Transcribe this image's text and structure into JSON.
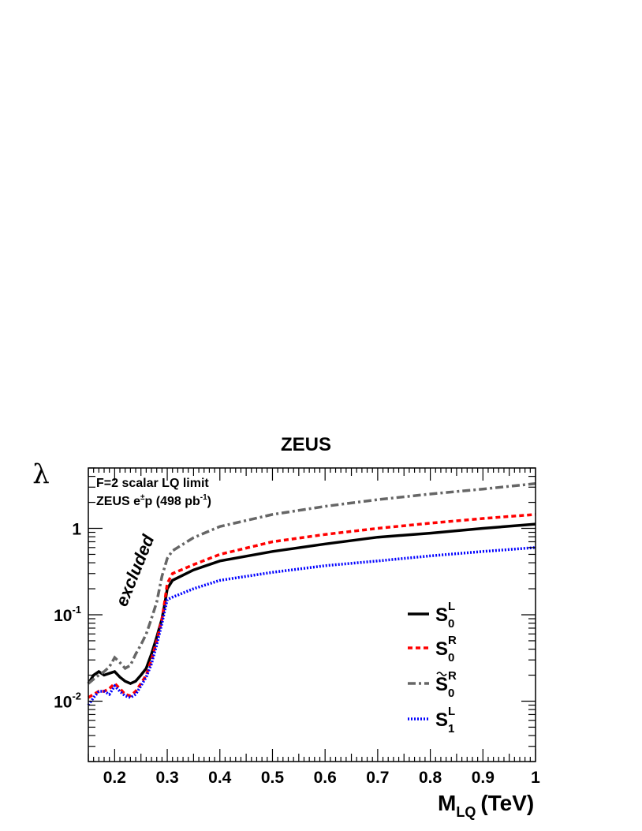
{
  "chart_data": {
    "type": "line",
    "title": "ZEUS",
    "xlabel_main": "M",
    "xlabel_sub": "LQ",
    "xlabel_unit": "(TeV)",
    "ylabel": "λ",
    "xlim": [
      0.15,
      1.0
    ],
    "ylim": [
      0.002,
      5
    ],
    "y_scale": "log",
    "grid": false,
    "x_ticks": [
      0.2,
      0.3,
      0.4,
      0.5,
      0.6,
      0.7,
      0.8,
      0.9,
      1
    ],
    "x_tick_labels": [
      "0.2",
      "0.3",
      "0.4",
      "0.5",
      "0.6",
      "0.7",
      "0.8",
      "0.9",
      "1"
    ],
    "y_ticks": [
      0.01,
      0.1,
      1
    ],
    "y_tick_labels": [
      {
        "base": "10",
        "exp": "-2"
      },
      {
        "base": "10",
        "exp": "-1"
      },
      {
        "base": "1",
        "exp": ""
      }
    ],
    "annotations": {
      "line1": "F=2 scalar LQ limit",
      "line2_prefix": "ZEUS e",
      "line2_sup": "±",
      "line2_mid": "p (498 pb",
      "line2_sup2": "-1",
      "line2_end": ")",
      "region": "excluded"
    },
    "legend_position": "bottom-right",
    "legend": [
      {
        "base": "S",
        "sub": "0",
        "sup": "L",
        "tilde": false
      },
      {
        "base": "S",
        "sub": "0",
        "sup": "R",
        "tilde": false
      },
      {
        "base": "S",
        "sub": "0",
        "sup": "R",
        "tilde": true
      },
      {
        "base": "S",
        "sub": "1",
        "sup": "L",
        "tilde": false
      }
    ],
    "series": [
      {
        "color": "#000000",
        "dash": "solid",
        "x": [
          0.15,
          0.16,
          0.17,
          0.18,
          0.19,
          0.2,
          0.21,
          0.22,
          0.23,
          0.24,
          0.25,
          0.26,
          0.27,
          0.28,
          0.29,
          0.295,
          0.3,
          0.31,
          0.35,
          0.4,
          0.5,
          0.6,
          0.7,
          0.8,
          0.9,
          1.0
        ],
        "y": [
          0.016,
          0.02,
          0.022,
          0.02,
          0.021,
          0.022,
          0.019,
          0.017,
          0.016,
          0.017,
          0.02,
          0.024,
          0.035,
          0.055,
          0.09,
          0.13,
          0.2,
          0.25,
          0.33,
          0.42,
          0.54,
          0.66,
          0.79,
          0.88,
          1.0,
          1.12
        ]
      },
      {
        "color": "#ff0000",
        "dash": "dashed",
        "x": [
          0.15,
          0.16,
          0.17,
          0.18,
          0.19,
          0.2,
          0.21,
          0.22,
          0.23,
          0.24,
          0.25,
          0.26,
          0.27,
          0.28,
          0.29,
          0.295,
          0.3,
          0.31,
          0.35,
          0.4,
          0.5,
          0.6,
          0.7,
          0.8,
          0.9,
          1.0
        ],
        "y": [
          0.011,
          0.012,
          0.013,
          0.013,
          0.014,
          0.016,
          0.014,
          0.012,
          0.0115,
          0.013,
          0.016,
          0.02,
          0.03,
          0.05,
          0.09,
          0.14,
          0.23,
          0.3,
          0.38,
          0.5,
          0.7,
          0.85,
          1.0,
          1.15,
          1.3,
          1.45
        ]
      },
      {
        "color": "#666666",
        "dash": "dashdot",
        "x": [
          0.15,
          0.16,
          0.17,
          0.18,
          0.19,
          0.2,
          0.21,
          0.22,
          0.23,
          0.24,
          0.25,
          0.26,
          0.27,
          0.28,
          0.29,
          0.3,
          0.31,
          0.35,
          0.4,
          0.5,
          0.6,
          0.7,
          0.8,
          0.9,
          1.0
        ],
        "y": [
          0.016,
          0.018,
          0.02,
          0.022,
          0.025,
          0.032,
          0.028,
          0.024,
          0.026,
          0.035,
          0.045,
          0.06,
          0.09,
          0.14,
          0.28,
          0.45,
          0.55,
          0.78,
          1.05,
          1.45,
          1.8,
          2.15,
          2.5,
          2.85,
          3.3
        ]
      },
      {
        "color": "#0000ff",
        "dash": "dotted",
        "x": [
          0.15,
          0.16,
          0.17,
          0.18,
          0.19,
          0.2,
          0.21,
          0.22,
          0.23,
          0.24,
          0.25,
          0.26,
          0.27,
          0.28,
          0.29,
          0.295,
          0.3,
          0.31,
          0.35,
          0.4,
          0.5,
          0.6,
          0.7,
          0.8,
          0.9,
          1.0
        ],
        "y": [
          0.009,
          0.011,
          0.013,
          0.013,
          0.012,
          0.015,
          0.013,
          0.0115,
          0.011,
          0.012,
          0.015,
          0.019,
          0.027,
          0.045,
          0.08,
          0.11,
          0.15,
          0.16,
          0.2,
          0.25,
          0.31,
          0.37,
          0.42,
          0.48,
          0.54,
          0.6
        ]
      }
    ]
  }
}
